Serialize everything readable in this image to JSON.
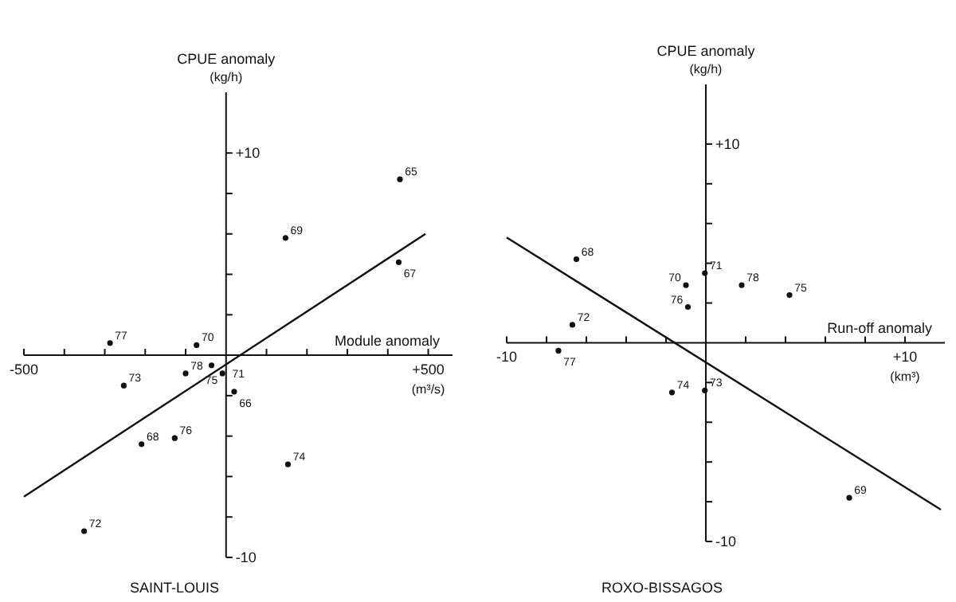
{
  "chart_data": [
    {
      "type": "scatter",
      "title": "SAINT-LOUIS",
      "xlabel": "Module anomaly",
      "ylabel": "CPUE anomaly (kg/h)",
      "marker": "circle",
      "grid": false,
      "xlim": [
        -500,
        560
      ],
      "ylim": [
        -10,
        13
      ],
      "xticks": [
        {
          "value": -500,
          "label": "-500"
        },
        {
          "value": -400,
          "label": null
        },
        {
          "value": -300,
          "label": null
        },
        {
          "value": -200,
          "label": null
        },
        {
          "value": -100,
          "label": null
        },
        {
          "value": 100,
          "label": null
        },
        {
          "value": 200,
          "label": null
        },
        {
          "value": 300,
          "label": null
        },
        {
          "value": 400,
          "label": null
        },
        {
          "value": 500,
          "label": "+500"
        }
      ],
      "yticks": [
        {
          "value": -10,
          "label": "-10"
        },
        {
          "value": -8,
          "label": null
        },
        {
          "value": -6,
          "label": null
        },
        {
          "value": -4,
          "label": null
        },
        {
          "value": -2,
          "label": null
        },
        {
          "value": 2,
          "label": null
        },
        {
          "value": 4,
          "label": null
        },
        {
          "value": 6,
          "label": null
        },
        {
          "value": 8,
          "label": null
        },
        {
          "value": 10,
          "label": "+10"
        }
      ],
      "series": [
        {
          "color": "#111111",
          "x": [
            430,
            147,
            427,
            -287,
            -73,
            -36,
            -100,
            -9,
            -253,
            20,
            -127,
            -209,
            153,
            -351
          ],
          "values": [
            8.7,
            5.8,
            4.6,
            0.6,
            0.5,
            -0.5,
            -0.9,
            -0.9,
            -1.5,
            -1.8,
            -4.1,
            -4.4,
            -5.4,
            -8.7
          ]
        },
        {
          "type": "line",
          "marker": "none",
          "color": "#111111",
          "x": [
            -500,
            493
          ],
          "values": [
            -7.0,
            6.0
          ]
        }
      ],
      "annotations": [
        "(m³/s)",
        {
          "text": "65",
          "x": 430,
          "y": 8.7
        },
        {
          "text": "69",
          "x": 147,
          "y": 5.8
        },
        {
          "text": "67",
          "x": 427,
          "y": 4.6
        },
        {
          "text": "77",
          "x": -287,
          "y": 0.6
        },
        {
          "text": "70",
          "x": -73,
          "y": 0.5
        },
        {
          "text": "75",
          "x": -36,
          "y": -0.5
        },
        {
          "text": "78",
          "x": -100,
          "y": -0.9
        },
        {
          "text": "71",
          "x": -9,
          "y": -0.9
        },
        {
          "text": "73",
          "x": -253,
          "y": -1.5
        },
        {
          "text": "66",
          "x": 20,
          "y": -1.8
        },
        {
          "text": "76",
          "x": -127,
          "y": -4.1
        },
        {
          "text": "68",
          "x": -209,
          "y": -4.4
        },
        {
          "text": "74",
          "x": 153,
          "y": -5.4
        },
        {
          "text": "72",
          "x": -351,
          "y": -8.7
        }
      ]
    },
    {
      "type": "scatter",
      "title": "ROXO-BISSAGOS",
      "xlabel": "Run-off anomaly",
      "ylabel": "CPUE anomaly (kg/h)",
      "marker": "circle",
      "grid": false,
      "xlim": [
        -10,
        12
      ],
      "ylim": [
        -10,
        13
      ],
      "xticks": [
        {
          "value": -10,
          "label": "-10"
        },
        {
          "value": -8,
          "label": null
        },
        {
          "value": -6,
          "label": null
        },
        {
          "value": -4,
          "label": null
        },
        {
          "value": -2,
          "label": null
        },
        {
          "value": 2,
          "label": null
        },
        {
          "value": 4,
          "label": null
        },
        {
          "value": 6,
          "label": null
        },
        {
          "value": 8,
          "label": null
        },
        {
          "value": 10,
          "label": "+10"
        }
      ],
      "yticks": [
        {
          "value": -10,
          "label": "-10"
        },
        {
          "value": -8,
          "label": null
        },
        {
          "value": -6,
          "label": null
        },
        {
          "value": -4,
          "label": null
        },
        {
          "value": -2,
          "label": null
        },
        {
          "value": 2,
          "label": null
        },
        {
          "value": 4,
          "label": null
        },
        {
          "value": 6,
          "label": null
        },
        {
          "value": 8,
          "label": null
        },
        {
          "value": 10,
          "label": "+10"
        }
      ],
      "series": [
        {
          "color": "#111111",
          "x": [
            -6.5,
            -1.0,
            -0.05,
            1.8,
            4.2,
            -0.9,
            -6.7,
            -7.4,
            -1.7,
            -0.05,
            7.2
          ],
          "values": [
            4.2,
            2.9,
            3.5,
            2.9,
            2.4,
            1.8,
            0.9,
            -0.4,
            -2.5,
            -2.4,
            -7.8
          ]
        },
        {
          "type": "line",
          "marker": "none",
          "color": "#111111",
          "x": [
            -10,
            11.8
          ],
          "values": [
            5.3,
            -8.4
          ]
        }
      ],
      "annotations": [
        "(km³)",
        {
          "text": "68",
          "x": -6.5,
          "y": 4.2
        },
        {
          "text": "70",
          "x": -1.0,
          "y": 2.9
        },
        {
          "text": "71",
          "x": -0.05,
          "y": 3.5
        },
        {
          "text": "78",
          "x": 1.8,
          "y": 2.9
        },
        {
          "text": "75",
          "x": 4.2,
          "y": 2.4
        },
        {
          "text": "76",
          "x": -0.9,
          "y": 1.8
        },
        {
          "text": "72",
          "x": -6.7,
          "y": 0.9
        },
        {
          "text": "77",
          "x": -7.4,
          "y": -0.4
        },
        {
          "text": "74",
          "x": -1.7,
          "y": -2.5
        },
        {
          "text": "73",
          "x": -0.05,
          "y": -2.4
        },
        {
          "text": "69",
          "x": 7.2,
          "y": -7.8
        }
      ]
    }
  ]
}
